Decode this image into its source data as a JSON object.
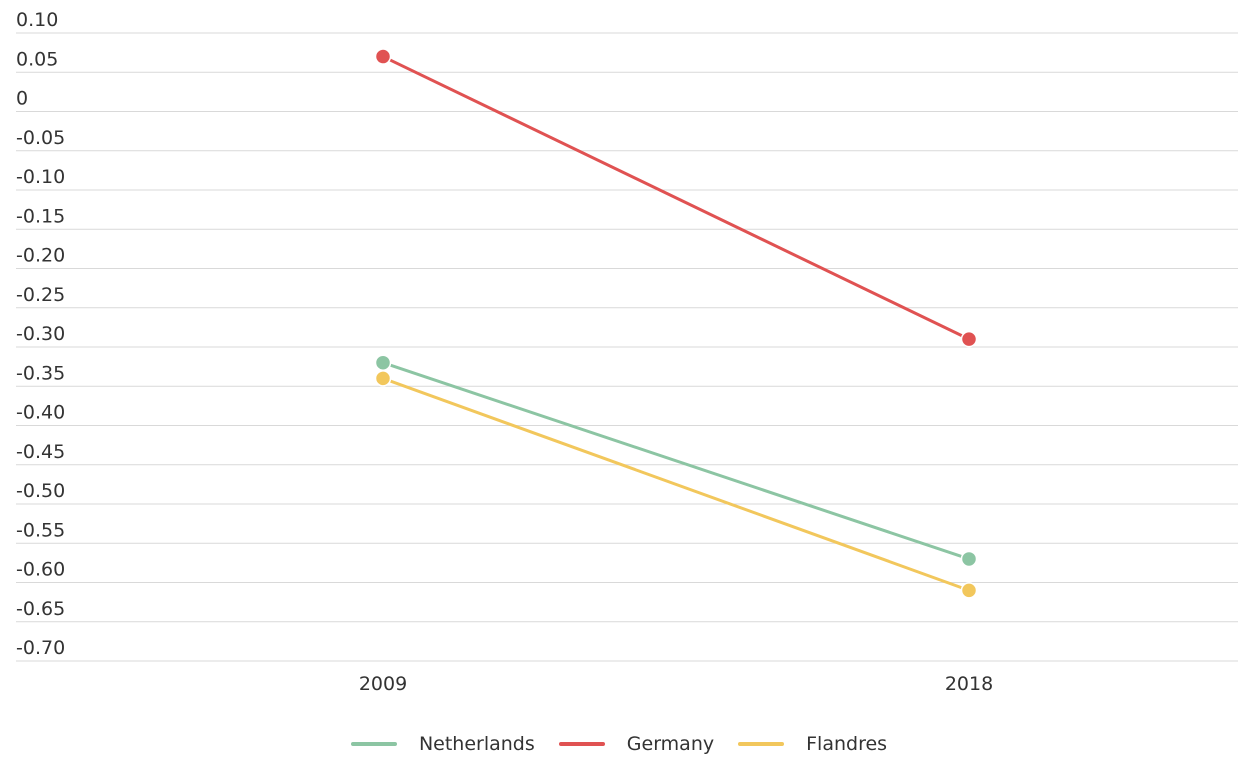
{
  "chart_data": {
    "type": "line",
    "title": "",
    "xlabel": "",
    "ylabel": "",
    "x": [
      "2009",
      "2018"
    ],
    "ylim": [
      -0.7,
      0.1
    ],
    "y_ticks": [
      "0.10",
      "0.05",
      "0",
      "-0.05",
      "-0.10",
      "-0.15",
      "-0.20",
      "-0.25",
      "-0.30",
      "-0.35",
      "-0.40",
      "-0.45",
      "-0.50",
      "-0.55",
      "-0.60",
      "-0.65",
      "-0.70"
    ],
    "y_tick_values": [
      0.1,
      0.05,
      0,
      -0.05,
      -0.1,
      -0.15,
      -0.2,
      -0.25,
      -0.3,
      -0.35,
      -0.4,
      -0.45,
      -0.5,
      -0.55,
      -0.6,
      -0.65,
      -0.7
    ],
    "grid": true,
    "legend_position": "bottom-center",
    "series": [
      {
        "name": "Netherlands",
        "color": "#8cc5a3",
        "values": [
          -0.32,
          -0.57
        ]
      },
      {
        "name": "Germany",
        "color": "#e05252",
        "values": [
          0.07,
          -0.29
        ]
      },
      {
        "name": "Flandres",
        "color": "#f2c75c",
        "values": [
          -0.34,
          -0.61
        ]
      }
    ]
  }
}
